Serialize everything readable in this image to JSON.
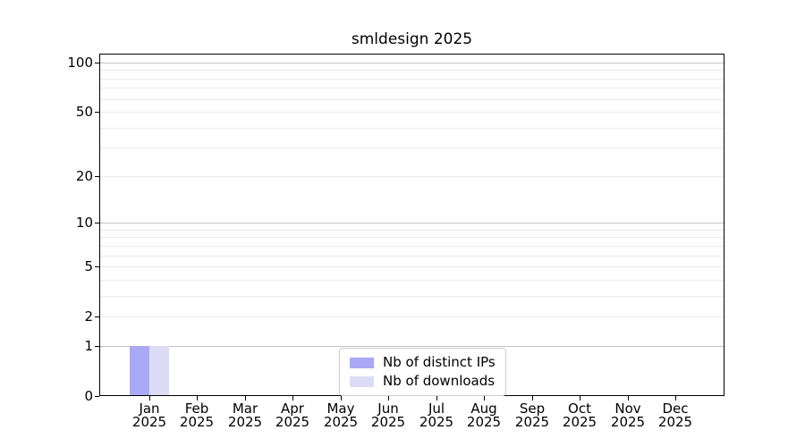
{
  "title": "smldesign 2025",
  "chart_data": {
    "type": "bar",
    "title": "smldesign 2025",
    "x_months": [
      "Jan",
      "Feb",
      "Mar",
      "Apr",
      "May",
      "Jun",
      "Jul",
      "Aug",
      "Sep",
      "Oct",
      "Nov",
      "Dec"
    ],
    "x_year": "2025",
    "series": [
      {
        "name": "Nb of distinct IPs",
        "color": "#a9a9f5",
        "values": [
          1,
          0,
          0,
          0,
          0,
          0,
          0,
          0,
          0,
          0,
          0,
          0
        ]
      },
      {
        "name": "Nb of downloads",
        "color": "#dcdcf7",
        "values": [
          1,
          0,
          0,
          0,
          0,
          0,
          0,
          0,
          0,
          0,
          0,
          0
        ]
      }
    ],
    "yscale": "log1p",
    "ylim": [
      0,
      113
    ],
    "y_tick_values": [
      0,
      1,
      2,
      5,
      10,
      20,
      50,
      100
    ],
    "y_tick_labels": [
      "0",
      "1",
      "2",
      "5",
      "10",
      "20",
      "50",
      "100"
    ],
    "y_major_gridline_values": [
      1,
      10,
      100
    ],
    "y_minor_gridline_values": [
      2,
      3,
      4,
      5,
      6,
      7,
      8,
      9,
      20,
      30,
      40,
      50,
      60,
      70,
      80,
      90
    ],
    "grid": true,
    "legend_position": "lower center"
  },
  "colors": {
    "major_grid": "#c4c4c4",
    "minor_grid": "#ebebeb",
    "spine": "#000000",
    "text": "#000000",
    "background": "#ffffff"
  }
}
